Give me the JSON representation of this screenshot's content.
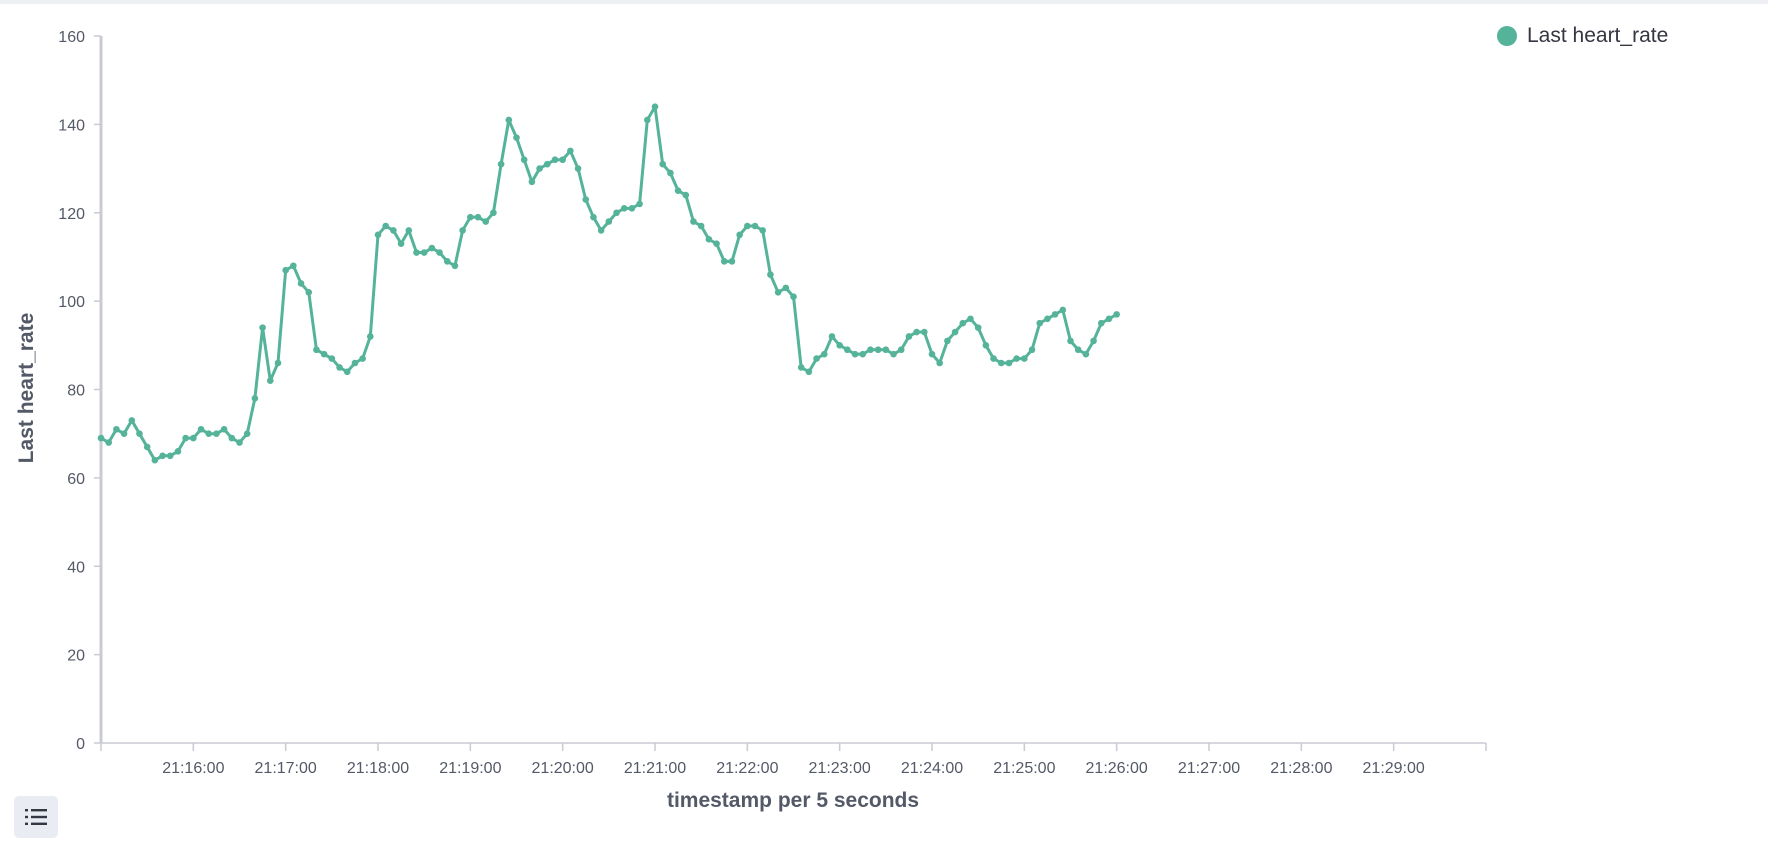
{
  "colors": {
    "series": "#54b399",
    "axis": "#c8cbd2",
    "tick_text": "#535966",
    "title_text": "#535966"
  },
  "legend": {
    "label": "Last heart_rate"
  },
  "toolbar": {
    "legend_toggle_icon": "list-icon"
  },
  "chart_data": {
    "type": "line",
    "title": "",
    "xlabel": "timestamp per 5 seconds",
    "ylabel": "Last heart_rate",
    "ylim": [
      0,
      160
    ],
    "yticks": [
      0,
      20,
      40,
      60,
      80,
      100,
      120,
      140,
      160
    ],
    "x_range": [
      "21:15:00",
      "21:30:00"
    ],
    "x_tick_labels": [
      "21:16:00",
      "21:17:00",
      "21:18:00",
      "21:19:00",
      "21:20:00",
      "21:21:00",
      "21:22:00",
      "21:23:00",
      "21:24:00",
      "21:25:00",
      "21:26:00",
      "21:27:00",
      "21:28:00",
      "21:29:00"
    ],
    "legend_position": "top-right",
    "grid": false,
    "series": [
      {
        "name": "Last heart_rate",
        "x_start": "21:15:00",
        "interval_seconds": 5,
        "values": [
          69,
          68,
          71,
          70,
          73,
          70,
          67,
          64,
          65,
          65,
          66,
          69,
          69,
          71,
          70,
          70,
          71,
          69,
          68,
          70,
          78,
          94,
          82,
          86,
          107,
          108,
          104,
          102,
          89,
          88,
          87,
          85,
          84,
          86,
          87,
          92,
          115,
          117,
          116,
          113,
          116,
          111,
          111,
          112,
          111,
          109,
          108,
          116,
          119,
          119,
          118,
          120,
          131,
          141,
          137,
          132,
          127,
          130,
          131,
          132,
          132,
          134,
          130,
          123,
          119,
          116,
          118,
          120,
          121,
          121,
          122,
          141,
          144,
          131,
          129,
          125,
          124,
          118,
          117,
          114,
          113,
          109,
          109,
          115,
          117,
          117,
          116,
          106,
          102,
          103,
          101,
          85,
          84,
          87,
          88,
          92,
          90,
          89,
          88,
          88,
          89,
          89,
          89,
          88,
          89,
          92,
          93,
          93,
          88,
          86,
          91,
          93,
          95,
          96,
          94,
          90,
          87,
          86,
          86,
          87,
          87,
          89,
          95,
          96,
          97,
          98,
          91,
          89,
          88,
          91,
          95,
          96,
          97
        ]
      }
    ]
  }
}
